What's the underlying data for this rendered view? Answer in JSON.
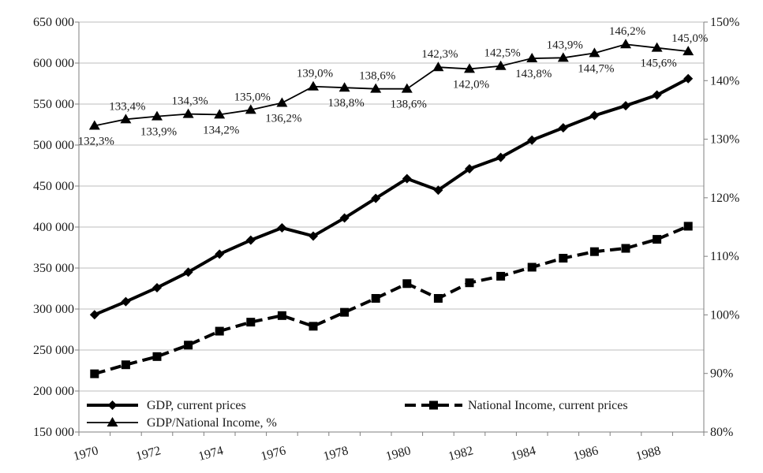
{
  "chart_data": {
    "type": "line",
    "x": [
      "1970",
      "1971",
      "1972",
      "1973",
      "1974",
      "1975",
      "1976",
      "1977",
      "1978",
      "1979",
      "1980",
      "1981",
      "1982",
      "1983",
      "1984",
      "1985",
      "1986",
      "1987",
      "1988",
      "1989"
    ],
    "x_tick_labels": [
      "1970",
      "1972",
      "1974",
      "1976",
      "1978",
      "1980",
      "1982",
      "1984",
      "1986",
      "1988"
    ],
    "y_left": {
      "min": 150000,
      "max": 650000,
      "step": 50000,
      "tick_labels": [
        "150 000",
        "200 000",
        "250 000",
        "300 000",
        "350 000",
        "400 000",
        "450 000",
        "500 000",
        "550 000",
        "600 000",
        "650 000"
      ]
    },
    "y_right": {
      "min": 80,
      "max": 150,
      "step": 10,
      "tick_labels": [
        "80%",
        "90%",
        "100%",
        "110%",
        "120%",
        "130%",
        "140%",
        "150%"
      ]
    },
    "grid": "horizontal",
    "legend": "bottom-left, inside plot",
    "series": [
      {
        "name": "GDP, current prices",
        "axis": "left",
        "marker": "diamond",
        "dash": "solid",
        "line_weight": "thick",
        "color": "#000000",
        "values": [
          293000,
          309000,
          326000,
          345000,
          367000,
          384000,
          399000,
          389000,
          411000,
          435000,
          459000,
          445000,
          471000,
          485000,
          506000,
          521000,
          536000,
          548000,
          561000,
          581000
        ]
      },
      {
        "name": "National Income, current prices",
        "axis": "left",
        "marker": "square",
        "dash": "dashed",
        "line_weight": "thick",
        "color": "#000000",
        "values": [
          221000,
          232000,
          242000,
          256000,
          273000,
          284000,
          292000,
          279000,
          296000,
          313000,
          331000,
          313000,
          332000,
          340000,
          351000,
          362000,
          370000,
          374000,
          385000,
          401000
        ]
      },
      {
        "name": "GDP/National Income, %",
        "axis": "right",
        "marker": "triangle",
        "dash": "solid",
        "line_weight": "thin",
        "color": "#000000",
        "values": [
          132.3,
          133.4,
          133.9,
          134.3,
          134.2,
          135.0,
          136.2,
          139.0,
          138.8,
          138.6,
          138.6,
          142.3,
          142.0,
          142.5,
          143.8,
          143.9,
          144.7,
          146.2,
          145.6,
          145.0
        ],
        "data_labels": [
          "132,3%",
          "133,4%",
          "133,9%",
          "134,3%",
          "134,2%",
          "135,0%",
          "136,2%",
          "139,0%",
          "138,8%",
          "138,6%",
          "138,6%",
          "142,3%",
          "142,0%",
          "142,5%",
          "143,8%",
          "143,9%",
          "144,7%",
          "146,2%",
          "145,6%",
          "145,0%"
        ]
      }
    ]
  }
}
